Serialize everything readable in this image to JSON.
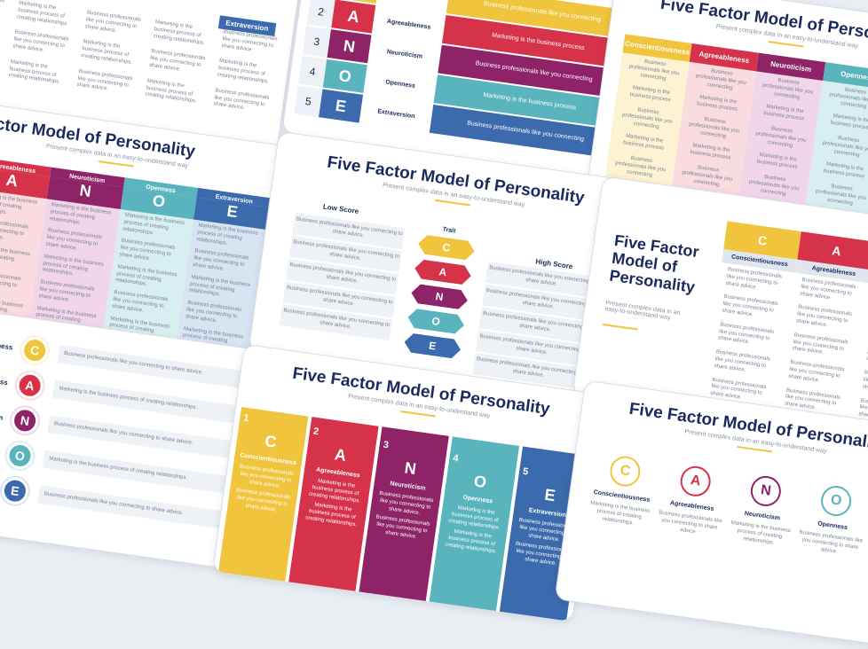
{
  "title": "Five Factor Model of Personality",
  "title_short": "Five Factor Model of Personality",
  "subtitle": "Present complex data in an easy-to-understand way",
  "low_score": "Low Score",
  "trait": "Trait",
  "high_score": "High Score",
  "text_a": "Business professionals like you connecting to share advice.",
  "text_b": "Marketing is the business process of creating relationships.",
  "text_c": "Business professionals like you connecting",
  "text_d": "Marketing is the business process",
  "traits": [
    {
      "number": "1",
      "letter": "C",
      "name": "Conscientiousness",
      "color": "#f0c43c",
      "pastel": "#fdf3d2"
    },
    {
      "number": "2",
      "letter": "A",
      "name": "Agreeableness",
      "color": "#d6334a",
      "pastel": "#f9dbe0"
    },
    {
      "number": "3",
      "letter": "N",
      "name": "Neuroticism",
      "color": "#8e2368",
      "pastel": "#f0d6e8"
    },
    {
      "number": "4",
      "letter": "O",
      "name": "Openness",
      "color": "#5ab4bd",
      "pastel": "#d8eff1"
    },
    {
      "number": "5",
      "letter": "E",
      "name": "Extraversion",
      "color": "#3b6aad",
      "pastel": "#d9e4f3"
    }
  ]
}
